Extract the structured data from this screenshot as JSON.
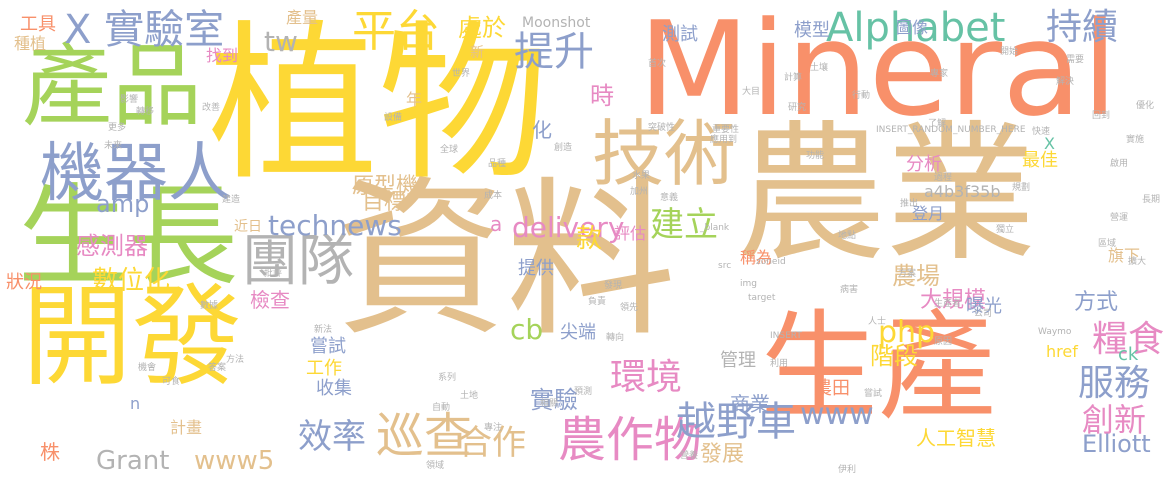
{
  "palette": {
    "yellow": "#fdd835",
    "tan": "#e3c08d",
    "orange": "#f8906a",
    "green": "#a5d35a",
    "blue": "#8d9fcb",
    "pink": "#e78ac3",
    "gray": "#b3b3b3",
    "teal": "#66c2a5"
  },
  "words": [
    {
      "text": "Mineral",
      "color": "orange"
    },
    {
      "text": "植物",
      "color": "yellow"
    },
    {
      "text": "資料",
      "color": "tan"
    },
    {
      "text": "農業",
      "color": "tan"
    },
    {
      "text": "開發",
      "color": "yellow"
    },
    {
      "text": "生長",
      "color": "green"
    },
    {
      "text": "產品",
      "color": "green"
    },
    {
      "text": "生產",
      "color": "orange"
    },
    {
      "text": "機器人",
      "color": "blue"
    },
    {
      "text": "技術",
      "color": "tan"
    },
    {
      "text": "團隊",
      "color": "gray"
    },
    {
      "text": "X 實驗室",
      "color": "blue"
    },
    {
      "text": "平台",
      "color": "yellow"
    },
    {
      "text": "Alphabet",
      "color": "teal"
    },
    {
      "text": "持續",
      "color": "blue"
    },
    {
      "text": "提升",
      "color": "blue"
    },
    {
      "text": "巡查",
      "color": "tan"
    },
    {
      "text": "農作物",
      "color": "pink"
    },
    {
      "text": "越野車",
      "color": "blue"
    },
    {
      "text": "環境",
      "color": "pink"
    },
    {
      "text": "糧食",
      "color": "pink"
    },
    {
      "text": "服務",
      "color": "blue"
    },
    {
      "text": "technews",
      "color": "blue"
    },
    {
      "text": "delivery",
      "color": "pink"
    },
    {
      "text": "建立",
      "color": "green"
    },
    {
      "text": "效率",
      "color": "blue"
    },
    {
      "text": "合作",
      "color": "tan"
    },
    {
      "text": "創新",
      "color": "pink"
    },
    {
      "text": "Elliott",
      "color": "blue"
    },
    {
      "text": "Grant",
      "color": "gray"
    },
    {
      "text": "www5",
      "color": "tan"
    },
    {
      "text": "www",
      "color": "blue"
    },
    {
      "text": "php",
      "color": "yellow"
    },
    {
      "text": "cb",
      "color": "green"
    },
    {
      "text": "amp",
      "color": "blue"
    },
    {
      "text": "tw",
      "color": "gray"
    },
    {
      "text": "處於",
      "color": "yellow"
    },
    {
      "text": "時",
      "color": "pink"
    },
    {
      "text": "化",
      "color": "blue"
    },
    {
      "text": "數位化",
      "color": "yellow"
    },
    {
      "text": "感測器",
      "color": "pink"
    },
    {
      "text": "原型機",
      "color": "tan"
    },
    {
      "text": "目標",
      "color": "tan"
    },
    {
      "text": "款",
      "color": "yellow"
    },
    {
      "text": "實驗",
      "color": "blue"
    },
    {
      "text": "農場",
      "color": "tan"
    },
    {
      "text": "大規模",
      "color": "pink"
    },
    {
      "text": "方式",
      "color": "blue"
    },
    {
      "text": "階段",
      "color": "yellow"
    },
    {
      "text": "人工智慧",
      "color": "yellow"
    },
    {
      "text": "商業",
      "color": "blue"
    },
    {
      "text": "發展",
      "color": "tan"
    },
    {
      "text": "模型",
      "color": "blue"
    },
    {
      "text": "圖像",
      "color": "blue"
    },
    {
      "text": "測試",
      "color": "blue"
    },
    {
      "text": "最佳",
      "color": "yellow"
    },
    {
      "text": "分析",
      "color": "pink"
    },
    {
      "text": "a4b3f35b",
      "color": "gray"
    },
    {
      "text": "登月",
      "color": "blue"
    },
    {
      "text": "旗下",
      "color": "tan"
    },
    {
      "text": "產量",
      "color": "tan"
    },
    {
      "text": "工具",
      "color": "orange"
    },
    {
      "text": "種植",
      "color": "tan"
    },
    {
      "text": "找到",
      "color": "pink"
    },
    {
      "text": "年",
      "color": "tan"
    },
    {
      "text": "Moonshot",
      "color": "gray"
    },
    {
      "text": "新",
      "color": "tan"
    },
    {
      "text": "評估",
      "color": "pink"
    },
    {
      "text": "a",
      "color": "pink"
    },
    {
      "text": "提供",
      "color": "blue"
    },
    {
      "text": "稱為",
      "color": "orange"
    },
    {
      "text": "曝光",
      "color": "blue"
    },
    {
      "text": "href",
      "color": "yellow"
    },
    {
      "text": "ck",
      "color": "teal"
    },
    {
      "text": "檢查",
      "color": "pink"
    },
    {
      "text": "狀況",
      "color": "orange"
    },
    {
      "text": "嘗試",
      "color": "blue"
    },
    {
      "text": "工作",
      "color": "yellow"
    },
    {
      "text": "收集",
      "color": "blue"
    },
    {
      "text": "管理",
      "color": "gray"
    },
    {
      "text": "尖端",
      "color": "blue"
    },
    {
      "text": "農田",
      "color": "orange"
    },
    {
      "text": "株",
      "color": "orange"
    },
    {
      "text": "計畫",
      "color": "tan"
    },
    {
      "text": "n",
      "color": "blue"
    },
    {
      "text": "近日",
      "color": "tan"
    },
    {
      "text": "X",
      "color": "teal"
    },
    {
      "text": "INSERT_RANDOM_NUMBER_HERE",
      "color": "gray"
    },
    {
      "text": "Waymo",
      "color": "gray"
    },
    {
      "text": "_blank",
      "color": "gray"
    },
    {
      "text": "target",
      "color": "gray"
    },
    {
      "text": "zoneid",
      "color": "gray"
    },
    {
      "text": "INSERT",
      "color": "gray"
    },
    {
      "text": "src",
      "color": "gray"
    },
    {
      "text": "img",
      "color": "gray"
    },
    {
      "text": "突破性",
      "color": "gray"
    },
    {
      "text": "重要性",
      "color": "gray"
    },
    {
      "text": "應用到",
      "color": "gray"
    },
    {
      "text": "研究",
      "color": "gray"
    },
    {
      "text": "世界",
      "color": "gray"
    },
    {
      "text": "專家",
      "color": "gray"
    },
    {
      "text": "解決",
      "color": "gray"
    },
    {
      "text": "計算",
      "color": "gray"
    },
    {
      "text": "土壤",
      "color": "gray"
    },
    {
      "text": "回到",
      "color": "gray"
    },
    {
      "text": "營運",
      "color": "gray"
    },
    {
      "text": "區域",
      "color": "gray"
    },
    {
      "text": "擴大",
      "color": "gray"
    },
    {
      "text": "公司",
      "color": "gray"
    },
    {
      "text": "人士",
      "color": "gray"
    },
    {
      "text": "系列",
      "color": "gray"
    },
    {
      "text": "土地",
      "color": "gray"
    },
    {
      "text": "領域",
      "color": "gray"
    },
    {
      "text": "伊利",
      "color": "gray"
    },
    {
      "text": "利用",
      "color": "gray"
    },
    {
      "text": "生產者",
      "color": "gray"
    },
    {
      "text": "原因",
      "color": "gray"
    },
    {
      "text": "意義",
      "color": "gray"
    },
    {
      "text": "加州",
      "color": "gray"
    },
    {
      "text": "未來",
      "color": "gray"
    },
    {
      "text": "功能",
      "color": "gray"
    },
    {
      "text": "快速",
      "color": "gray"
    },
    {
      "text": "行動",
      "color": "gray"
    },
    {
      "text": "大目",
      "color": "gray"
    },
    {
      "text": "長期",
      "color": "gray"
    },
    {
      "text": "方案",
      "color": "gray"
    },
    {
      "text": "新法",
      "color": "gray"
    },
    {
      "text": "答案",
      "color": "gray"
    },
    {
      "text": "可食",
      "color": "gray"
    },
    {
      "text": "自動",
      "color": "gray"
    },
    {
      "text": "領先",
      "color": "gray"
    },
    {
      "text": "轉向",
      "color": "gray"
    },
    {
      "text": "相關",
      "color": "gray"
    },
    {
      "text": "專注",
      "color": "gray"
    },
    {
      "text": "預測",
      "color": "gray"
    },
    {
      "text": "營養",
      "color": "gray"
    },
    {
      "text": "數據",
      "color": "gray"
    },
    {
      "text": "轉移",
      "color": "gray"
    },
    {
      "text": "機會",
      "color": "gray"
    },
    {
      "text": "更多",
      "color": "gray"
    },
    {
      "text": "改善",
      "color": "gray"
    },
    {
      "text": "影響",
      "color": "gray"
    },
    {
      "text": "首次",
      "color": "gray"
    },
    {
      "text": "需要",
      "color": "gray"
    },
    {
      "text": "開始",
      "color": "gray"
    },
    {
      "text": "啟用",
      "color": "gray"
    },
    {
      "text": "過程",
      "color": "gray"
    },
    {
      "text": "病害",
      "color": "gray"
    },
    {
      "text": "發現",
      "color": "gray"
    },
    {
      "text": "負責",
      "color": "gray"
    },
    {
      "text": "水果",
      "color": "gray"
    },
    {
      "text": "設備",
      "color": "gray"
    },
    {
      "text": "全球",
      "color": "gray"
    },
    {
      "text": "品種",
      "color": "gray"
    },
    {
      "text": "創造",
      "color": "gray"
    },
    {
      "text": "成本",
      "color": "gray"
    },
    {
      "text": "方法",
      "color": "gray"
    },
    {
      "text": "建造",
      "color": "gray"
    },
    {
      "text": "批評",
      "color": "gray"
    },
    {
      "text": "獨立",
      "color": "gray"
    },
    {
      "text": "規劃",
      "color": "gray"
    },
    {
      "text": "優化",
      "color": "gray"
    },
    {
      "text": "實施",
      "color": "gray"
    },
    {
      "text": "推出",
      "color": "gray"
    },
    {
      "text": "了解",
      "color": "gray"
    },
    {
      "text": "地點",
      "color": "gray"
    },
    {
      "text": "嘗試",
      "color": "gray"
    }
  ]
}
